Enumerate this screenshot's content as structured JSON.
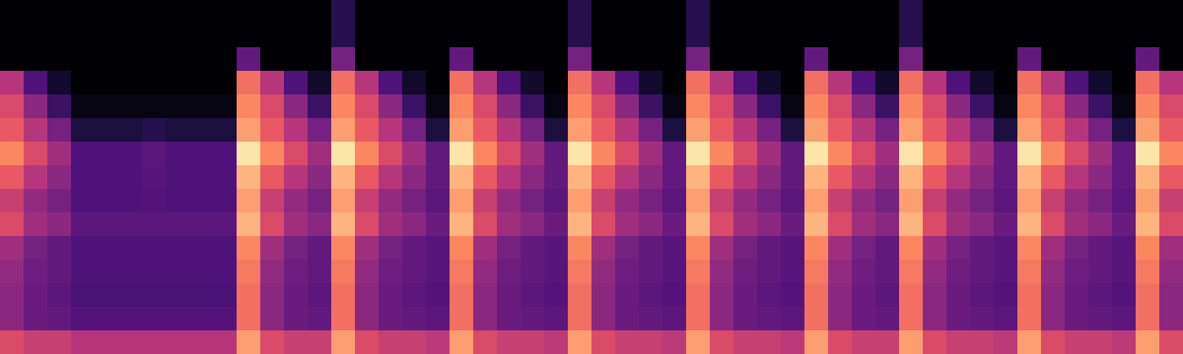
{
  "chart_data": {
    "type": "heatmap",
    "color": "magma",
    "tick_labels": false,
    "color_range": [
      0,
      1
    ],
    "cells": [
      [
        0,
        0,
        0,
        0,
        0,
        0,
        0,
        0,
        0,
        0,
        0,
        0,
        0,
        0,
        0.15,
        0,
        0,
        0,
        0,
        0,
        0,
        0,
        0,
        0,
        0.15,
        0,
        0,
        0,
        0,
        0.15,
        0,
        0,
        0,
        0,
        0,
        0,
        0,
        0,
        0.15,
        0,
        0,
        0,
        0,
        0,
        0,
        0,
        0,
        0,
        0,
        0
      ],
      [
        0,
        0,
        0,
        0,
        0,
        0,
        0,
        0,
        0,
        0,
        0,
        0,
        0,
        0,
        0.15,
        0,
        0,
        0,
        0,
        0,
        0,
        0,
        0,
        0,
        0.15,
        0,
        0,
        0,
        0,
        0.15,
        0,
        0,
        0,
        0,
        0,
        0,
        0,
        0,
        0.15,
        0,
        0,
        0,
        0,
        0,
        0,
        0,
        0,
        0,
        0,
        0
      ],
      [
        0,
        0,
        0,
        0,
        0,
        0,
        0,
        0,
        0,
        0,
        0.3,
        0,
        0,
        0,
        0.35,
        0,
        0,
        0,
        0,
        0.3,
        0,
        0,
        0,
        0,
        0.35,
        0,
        0,
        0,
        0,
        0.35,
        0,
        0,
        0,
        0,
        0.3,
        0,
        0,
        0,
        0.35,
        0,
        0,
        0,
        0,
        0.3,
        0,
        0,
        0,
        0,
        0.3,
        0
      ],
      [
        0.5,
        0.25,
        0.08,
        0,
        0,
        0,
        0,
        0,
        0,
        0,
        0.7,
        0.5,
        0.25,
        0.08,
        0.7,
        0.5,
        0.25,
        0.08,
        0,
        0.7,
        0.5,
        0.25,
        0.08,
        0,
        0.7,
        0.5,
        0.25,
        0.08,
        0,
        0.7,
        0.5,
        0.25,
        0.08,
        0,
        0.7,
        0.5,
        0.25,
        0.08,
        0.7,
        0.5,
        0.25,
        0.08,
        0,
        0.7,
        0.5,
        0.25,
        0.08,
        0,
        0.7,
        0.5
      ],
      [
        0.6,
        0.4,
        0.2,
        0.03,
        0.03,
        0.03,
        0.03,
        0.03,
        0.03,
        0.03,
        0.75,
        0.6,
        0.4,
        0.2,
        0.75,
        0.6,
        0.4,
        0.2,
        0.03,
        0.75,
        0.6,
        0.4,
        0.2,
        0.03,
        0.75,
        0.6,
        0.4,
        0.2,
        0.03,
        0.75,
        0.6,
        0.4,
        0.2,
        0.03,
        0.75,
        0.6,
        0.4,
        0.2,
        0.75,
        0.6,
        0.4,
        0.2,
        0.03,
        0.75,
        0.6,
        0.4,
        0.2,
        0.03,
        0.75,
        0.6
      ],
      [
        0.65,
        0.5,
        0.35,
        0.12,
        0.12,
        0.12,
        0.15,
        0.12,
        0.12,
        0.12,
        0.8,
        0.65,
        0.5,
        0.35,
        0.8,
        0.65,
        0.5,
        0.35,
        0.12,
        0.8,
        0.65,
        0.5,
        0.35,
        0.12,
        0.8,
        0.65,
        0.5,
        0.35,
        0.12,
        0.8,
        0.65,
        0.5,
        0.35,
        0.12,
        0.8,
        0.65,
        0.5,
        0.35,
        0.8,
        0.65,
        0.5,
        0.35,
        0.12,
        0.8,
        0.65,
        0.5,
        0.35,
        0.12,
        0.8,
        0.65
      ],
      [
        0.75,
        0.6,
        0.45,
        0.25,
        0.25,
        0.25,
        0.28,
        0.25,
        0.25,
        0.25,
        0.95,
        0.75,
        0.6,
        0.45,
        0.95,
        0.75,
        0.6,
        0.45,
        0.3,
        0.95,
        0.75,
        0.6,
        0.45,
        0.3,
        0.95,
        0.75,
        0.6,
        0.45,
        0.3,
        0.95,
        0.75,
        0.6,
        0.45,
        0.3,
        0.95,
        0.75,
        0.6,
        0.45,
        0.95,
        0.75,
        0.6,
        0.45,
        0.3,
        0.95,
        0.75,
        0.6,
        0.45,
        0.3,
        0.95,
        0.75
      ],
      [
        0.65,
        0.5,
        0.4,
        0.25,
        0.25,
        0.25,
        0.27,
        0.25,
        0.25,
        0.25,
        0.85,
        0.65,
        0.5,
        0.4,
        0.85,
        0.65,
        0.5,
        0.4,
        0.3,
        0.85,
        0.65,
        0.5,
        0.4,
        0.3,
        0.85,
        0.65,
        0.5,
        0.4,
        0.3,
        0.85,
        0.65,
        0.5,
        0.4,
        0.3,
        0.85,
        0.65,
        0.5,
        0.4,
        0.85,
        0.65,
        0.5,
        0.4,
        0.3,
        0.85,
        0.65,
        0.5,
        0.4,
        0.3,
        0.85,
        0.65
      ],
      [
        0.55,
        0.42,
        0.35,
        0.25,
        0.25,
        0.25,
        0.26,
        0.25,
        0.25,
        0.25,
        0.8,
        0.55,
        0.42,
        0.35,
        0.8,
        0.55,
        0.42,
        0.35,
        0.28,
        0.8,
        0.55,
        0.42,
        0.35,
        0.28,
        0.8,
        0.55,
        0.42,
        0.35,
        0.28,
        0.8,
        0.55,
        0.42,
        0.35,
        0.28,
        0.8,
        0.55,
        0.42,
        0.35,
        0.8,
        0.55,
        0.42,
        0.35,
        0.28,
        0.8,
        0.55,
        0.42,
        0.35,
        0.28,
        0.8,
        0.55
      ],
      [
        0.6,
        0.45,
        0.4,
        0.28,
        0.28,
        0.28,
        0.28,
        0.28,
        0.28,
        0.28,
        0.85,
        0.6,
        0.45,
        0.4,
        0.85,
        0.6,
        0.45,
        0.4,
        0.32,
        0.85,
        0.6,
        0.45,
        0.4,
        0.32,
        0.85,
        0.6,
        0.45,
        0.4,
        0.32,
        0.85,
        0.6,
        0.45,
        0.4,
        0.32,
        0.85,
        0.6,
        0.45,
        0.4,
        0.85,
        0.6,
        0.45,
        0.4,
        0.32,
        0.85,
        0.6,
        0.45,
        0.4,
        0.32,
        0.85,
        0.6
      ],
      [
        0.45,
        0.35,
        0.3,
        0.25,
        0.25,
        0.25,
        0.25,
        0.25,
        0.25,
        0.25,
        0.75,
        0.45,
        0.35,
        0.3,
        0.75,
        0.45,
        0.35,
        0.3,
        0.27,
        0.75,
        0.45,
        0.35,
        0.3,
        0.27,
        0.75,
        0.45,
        0.35,
        0.3,
        0.27,
        0.75,
        0.45,
        0.35,
        0.3,
        0.27,
        0.75,
        0.45,
        0.35,
        0.3,
        0.75,
        0.45,
        0.35,
        0.3,
        0.27,
        0.75,
        0.45,
        0.35,
        0.3,
        0.27,
        0.75,
        0.45
      ],
      [
        0.42,
        0.33,
        0.3,
        0.25,
        0.25,
        0.25,
        0.25,
        0.25,
        0.25,
        0.25,
        0.72,
        0.42,
        0.33,
        0.3,
        0.72,
        0.42,
        0.33,
        0.3,
        0.27,
        0.72,
        0.42,
        0.33,
        0.3,
        0.27,
        0.72,
        0.42,
        0.33,
        0.3,
        0.27,
        0.72,
        0.42,
        0.33,
        0.3,
        0.27,
        0.72,
        0.42,
        0.33,
        0.3,
        0.72,
        0.42,
        0.33,
        0.3,
        0.27,
        0.72,
        0.42,
        0.33,
        0.3,
        0.27,
        0.72,
        0.42
      ],
      [
        0.4,
        0.32,
        0.28,
        0.24,
        0.24,
        0.24,
        0.24,
        0.24,
        0.24,
        0.24,
        0.7,
        0.4,
        0.32,
        0.28,
        0.7,
        0.4,
        0.32,
        0.28,
        0.26,
        0.7,
        0.4,
        0.32,
        0.28,
        0.26,
        0.7,
        0.4,
        0.32,
        0.28,
        0.26,
        0.7,
        0.4,
        0.32,
        0.28,
        0.26,
        0.7,
        0.4,
        0.32,
        0.28,
        0.7,
        0.4,
        0.32,
        0.28,
        0.26,
        0.7,
        0.4,
        0.32,
        0.28,
        0.26,
        0.7,
        0.4
      ],
      [
        0.4,
        0.32,
        0.3,
        0.26,
        0.26,
        0.26,
        0.26,
        0.26,
        0.26,
        0.26,
        0.7,
        0.4,
        0.32,
        0.3,
        0.7,
        0.4,
        0.32,
        0.3,
        0.28,
        0.7,
        0.4,
        0.32,
        0.3,
        0.28,
        0.7,
        0.4,
        0.32,
        0.3,
        0.28,
        0.7,
        0.4,
        0.32,
        0.3,
        0.28,
        0.7,
        0.4,
        0.32,
        0.3,
        0.7,
        0.4,
        0.32,
        0.3,
        0.28,
        0.7,
        0.4,
        0.32,
        0.3,
        0.28,
        0.7,
        0.4
      ],
      [
        0.6,
        0.55,
        0.55,
        0.5,
        0.5,
        0.5,
        0.5,
        0.5,
        0.5,
        0.5,
        0.8,
        0.6,
        0.55,
        0.55,
        0.8,
        0.6,
        0.55,
        0.55,
        0.52,
        0.8,
        0.6,
        0.55,
        0.55,
        0.52,
        0.8,
        0.6,
        0.55,
        0.55,
        0.52,
        0.8,
        0.6,
        0.55,
        0.55,
        0.52,
        0.8,
        0.6,
        0.55,
        0.55,
        0.8,
        0.6,
        0.55,
        0.55,
        0.52,
        0.8,
        0.6,
        0.55,
        0.55,
        0.52,
        0.8,
        0.6
      ]
    ]
  }
}
